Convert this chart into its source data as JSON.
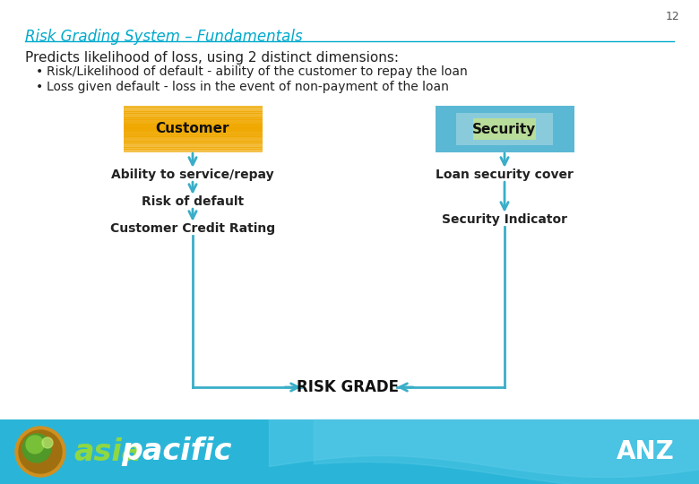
{
  "page_number": "12",
  "title": "Risk Grading System – Fundamentals",
  "title_color": "#00AACC",
  "title_underline_color": "#00AACC",
  "bg_color": "#FFFFFF",
  "intro_text": "Predicts likelihood of loss, using 2 distinct dimensions:",
  "bullets": [
    "Risk/Likelihood of default - ability of the customer to repay the loan",
    "Loss given default - loss in the event of non-payment of the loan"
  ],
  "customer_box_color": "#F0A800",
  "customer_box_text": "Customer",
  "security_box_outer": "#5BB8D4",
  "security_box_inner": "#E8E080",
  "security_box_text": "Security",
  "arrow_color": "#3AAEC8",
  "left_flow": [
    "Ability to service/repay",
    "Risk of default",
    "Customer Credit Rating"
  ],
  "right_flow": [
    "Loan security cover",
    "Security Indicator"
  ],
  "risk_grade_text": "RISK GRADE",
  "footer_bg": "#2AB5D8",
  "footer_wave_color": "#55C8E8",
  "footer_asia_color": "#90D840",
  "footer_pacific_color": "#FFFFFF",
  "text_color": "#222222",
  "font_size_intro": 11,
  "font_size_bullets": 10,
  "font_size_title": 12,
  "font_size_flow": 10,
  "font_size_riskgrade": 12,
  "font_size_boxes": 11
}
